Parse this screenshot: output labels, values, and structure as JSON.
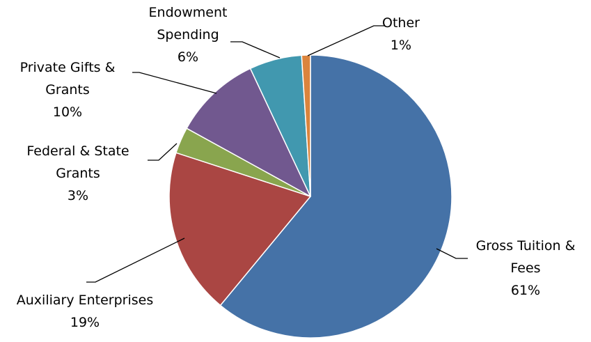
{
  "chart_data": {
    "type": "pie",
    "title": "",
    "start_angle_deg": 0,
    "direction": "clockwise",
    "legend": "none",
    "slices": [
      {
        "label": "Gross Tuition & Fees",
        "value": 61,
        "value_label": "61%",
        "color": "#4572A7"
      },
      {
        "label": "Auxiliary Enterprises",
        "value": 19,
        "value_label": "19%",
        "color": "#AA4643"
      },
      {
        "label": "Federal & State Grants",
        "value": 3,
        "value_label": "3%",
        "color": "#89A54E"
      },
      {
        "label": "Private Gifts & Grants",
        "value": 10,
        "value_label": "10%",
        "color": "#71588F"
      },
      {
        "label": "Endowment Spending",
        "value": 6,
        "value_label": "6%",
        "color": "#4198AF"
      },
      {
        "label": "Other",
        "value": 1,
        "value_label": "1%",
        "color": "#DB843D"
      }
    ]
  }
}
